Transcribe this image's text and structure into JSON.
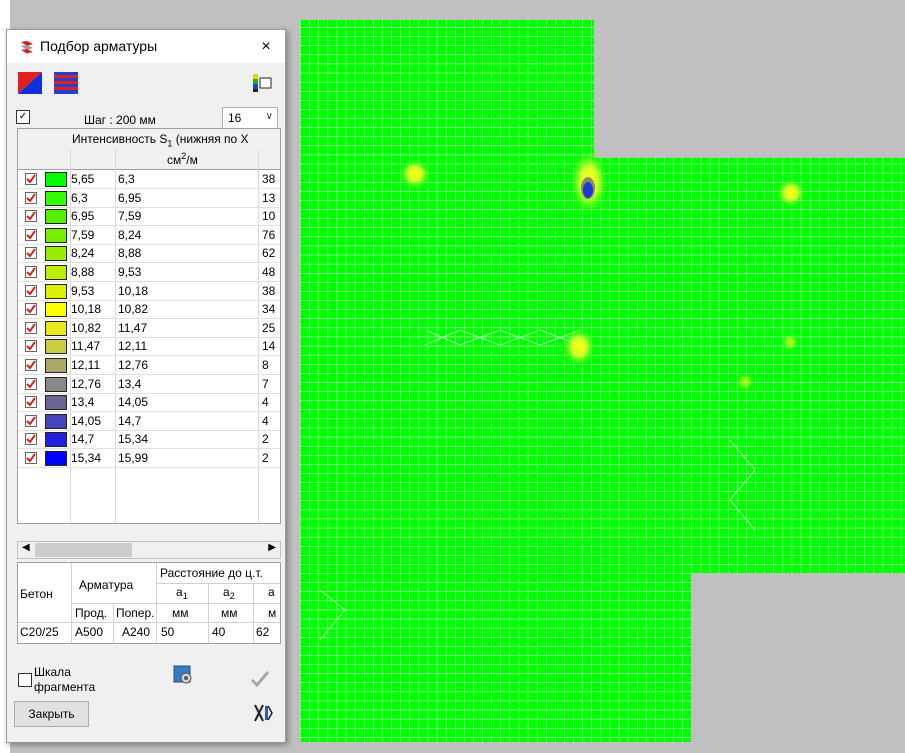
{
  "window": {
    "title": "Подбор арматуры",
    "close_glyph": "×"
  },
  "toolbar": {
    "step_label": "Шаг : 200 мм",
    "step_checked": true,
    "bar_size": "16"
  },
  "table": {
    "header": "Интенсивность S",
    "header_sub": "1",
    "header_tail": " (нижняя по X",
    "unit_main": "см",
    "unit_sup": "2",
    "unit_tail": "/м",
    "rows": [
      {
        "from": "5,65",
        "to": "6,3",
        "count": "38",
        "color": "#00ff00"
      },
      {
        "from": "6,3",
        "to": "6,95",
        "count": "13",
        "color": "#33ff00"
      },
      {
        "from": "6,95",
        "to": "7,59",
        "count": "10",
        "color": "#55f000"
      },
      {
        "from": "7,59",
        "to": "8,24",
        "count": "76",
        "color": "#77ee00"
      },
      {
        "from": "8,24",
        "to": "8,88",
        "count": "62",
        "color": "#99ee00"
      },
      {
        "from": "8,88",
        "to": "9,53",
        "count": "48",
        "color": "#bbee00"
      },
      {
        "from": "9,53",
        "to": "10,18",
        "count": "38",
        "color": "#ddf000"
      },
      {
        "from": "10,18",
        "to": "10,82",
        "count": "34",
        "color": "#ffff00"
      },
      {
        "from": "10,82",
        "to": "11,47",
        "count": "25",
        "color": "#eaea20"
      },
      {
        "from": "11,47",
        "to": "12,11",
        "count": "14",
        "color": "#cccc44"
      },
      {
        "from": "12,11",
        "to": "12,76",
        "count": "8",
        "color": "#aaaa66"
      },
      {
        "from": "12,76",
        "to": "13,4",
        "count": "7",
        "color": "#888888"
      },
      {
        "from": "13,4",
        "to": "14,05",
        "count": "4",
        "color": "#666699"
      },
      {
        "from": "14,05",
        "to": "14,7",
        "count": "4",
        "color": "#4444bb"
      },
      {
        "from": "14,7",
        "to": "15,34",
        "count": "2",
        "color": "#2222dd"
      },
      {
        "from": "15,34",
        "to": "15,99",
        "count": "2",
        "color": "#0000ff"
      }
    ]
  },
  "materials": {
    "concrete_header": "Бетон",
    "rebar_header": "Арматура",
    "distance_header": "Расстояние до ц.т.",
    "long_header": "Прод.",
    "trans_header": "Попер.",
    "a1_label": "a",
    "a1_sub": "1",
    "a2_label": "a",
    "a2_sub": "2",
    "a3_label": "a",
    "unit_mm": "мм",
    "unit_mm_cut": "м",
    "concrete": "C20/25",
    "long_rebar": "A500",
    "trans_rebar": "A240",
    "a1": "50",
    "a2": "40",
    "a3": "62"
  },
  "footer": {
    "scale_label_1": "Шкала",
    "scale_label_2": "фрагмента",
    "close_button": "Закрыть"
  },
  "colors": {
    "mesh_green": "#00ff00",
    "mesh_line": "#ffffff",
    "background": "#c0c0c0",
    "hotspot_yellow": "#ffff00",
    "hotspot_blue": "#1a3cd0"
  },
  "icons": {
    "window": "app-logo-icon",
    "toolbar": [
      "color-scheme-red-blue-icon",
      "color-scheme-red-blue-stripes-icon",
      "palette-table-icon"
    ],
    "footer": [
      "settings-icon",
      "apply-checkmark-icon",
      "scissors-icon"
    ]
  }
}
